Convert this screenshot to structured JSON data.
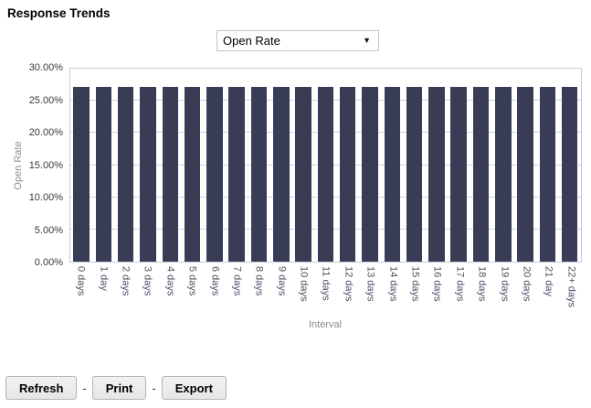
{
  "page": {
    "title": "Response Trends"
  },
  "metric_dropdown": {
    "selected": "Open Rate",
    "caret_icon": "▼"
  },
  "chart_data": {
    "type": "bar",
    "title": "Response Trends",
    "categories": [
      "0 days",
      "1 day",
      "2 days",
      "3 days",
      "4 days",
      "5 days",
      "6 days",
      "7 days",
      "8 days",
      "9 days",
      "10 days",
      "11 days",
      "12 days",
      "13 days",
      "14 days",
      "15 days",
      "16 days",
      "17 days",
      "18 days",
      "19 days",
      "20 days",
      "21 day",
      "22+ days"
    ],
    "values": [
      27.1,
      27.1,
      27.1,
      27.1,
      27.1,
      27.1,
      27.1,
      27.1,
      27.1,
      27.1,
      27.1,
      27.1,
      27.1,
      27.1,
      27.1,
      27.1,
      27.1,
      27.1,
      27.1,
      27.1,
      27.1,
      27.1,
      27.1
    ],
    "xlabel": "Interval",
    "ylabel": "Open Rate",
    "ylim": [
      0,
      30
    ],
    "ytick_step": 5,
    "ytick_labels": [
      "0.00%",
      "5.00%",
      "10.00%",
      "15.00%",
      "20.00%",
      "25.00%",
      "30.00%"
    ],
    "grid": true,
    "legend": "none",
    "bar_color": "#383d55"
  },
  "footer": {
    "refresh_label": "Refresh",
    "print_label": "Print",
    "export_label": "Export",
    "separator": "-"
  },
  "colors": {
    "bar": "#383d55",
    "grid": "#ccd3dd",
    "plot_border": "#c6cdd8",
    "axis_title_text": "#8b8b95",
    "x_tick_text": "#4b4f63",
    "y_tick_text": "#3a3a3a"
  }
}
